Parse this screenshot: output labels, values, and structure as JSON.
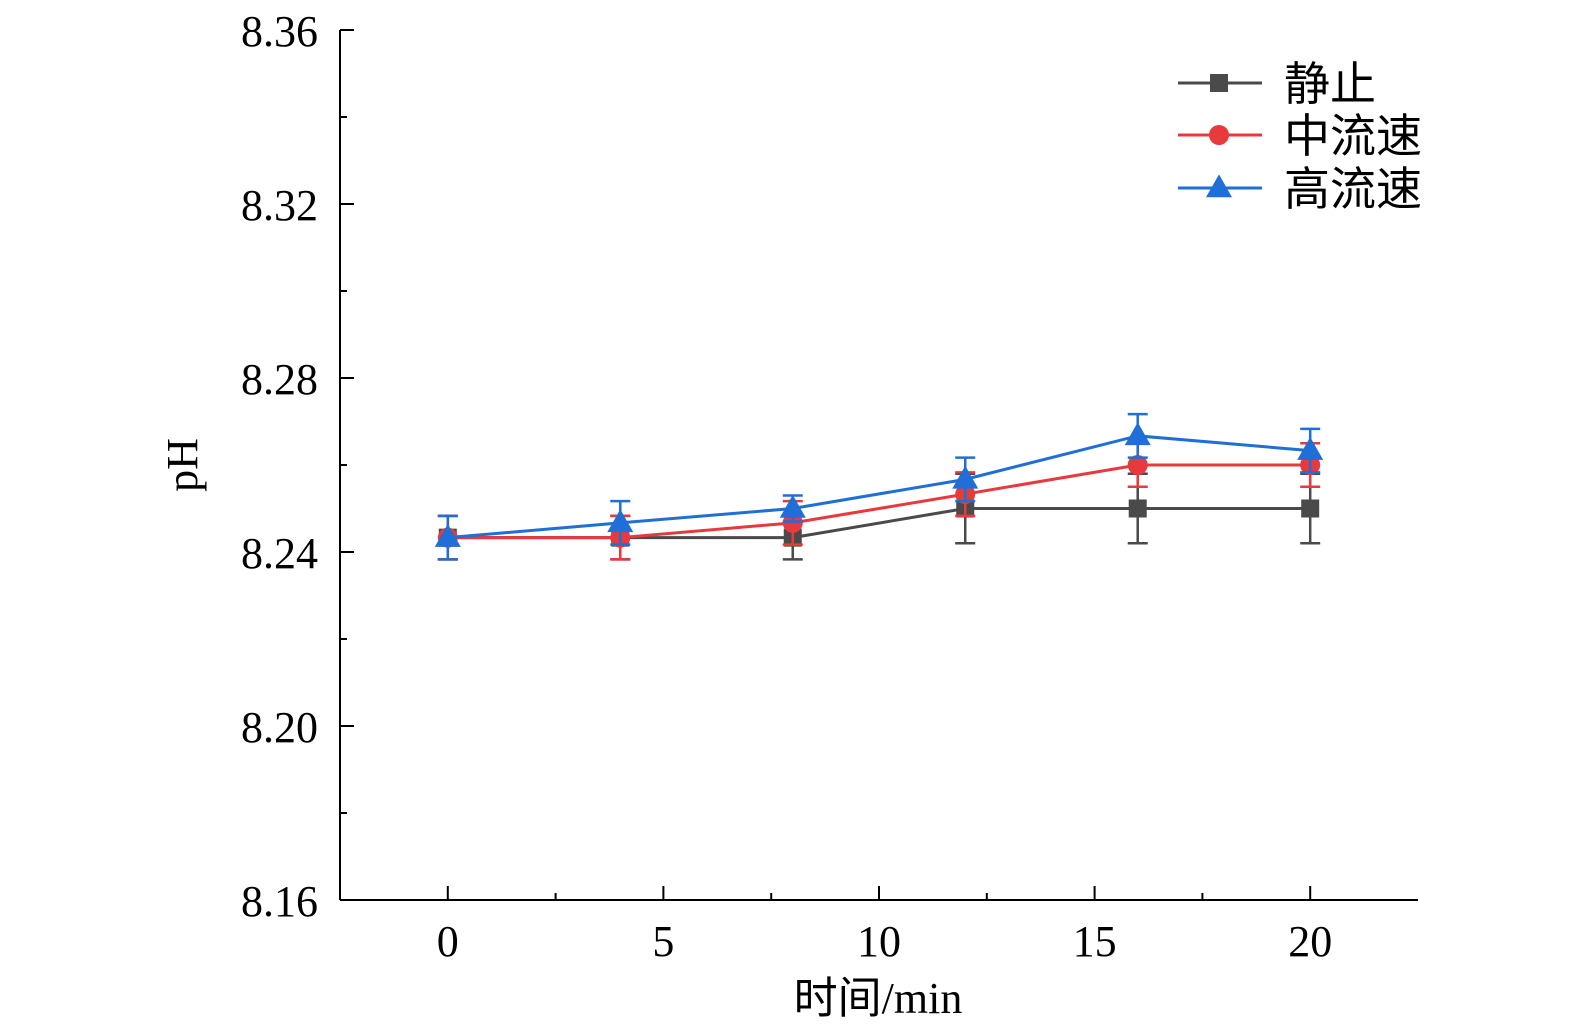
{
  "chart_data": {
    "type": "line",
    "xlabel": "时间/min",
    "ylabel": "pH",
    "xlim": [
      -2.5,
      22.5
    ],
    "ylim": [
      8.16,
      8.36
    ],
    "x_ticks": [
      0,
      5,
      10,
      15,
      20
    ],
    "y_ticks": [
      8.16,
      8.2,
      8.24,
      8.28,
      8.32,
      8.36
    ],
    "x_tick_labels": [
      "0",
      "5",
      "10",
      "15",
      "20"
    ],
    "y_tick_labels": [
      "8.16",
      "8.20",
      "8.24",
      "8.28",
      "8.32",
      "8.36"
    ],
    "x_minor_ticks": [
      2.5,
      7.5,
      12.5,
      17.5
    ],
    "y_minor_ticks": [
      8.18,
      8.22,
      8.26,
      8.3,
      8.34
    ],
    "grid": false,
    "legend_position": "top-right",
    "x": [
      0,
      4,
      8,
      12,
      16,
      20
    ],
    "series": [
      {
        "name": "静止",
        "color": "#4a4a4a",
        "marker": "square",
        "values": [
          8.2433,
          8.2433,
          8.2433,
          8.25,
          8.25,
          8.25
        ],
        "errors": [
          0.005,
          0.005,
          0.005,
          0.008,
          0.008,
          0.008
        ]
      },
      {
        "name": "中流速",
        "color": "#e8393c",
        "marker": "circle",
        "values": [
          8.2433,
          8.2433,
          8.2467,
          8.2533,
          8.26,
          8.26
        ],
        "errors": [
          0.005,
          0.005,
          0.005,
          0.005,
          0.005,
          0.005
        ]
      },
      {
        "name": "高流速",
        "color": "#1f6fd6",
        "marker": "triangle",
        "values": [
          8.2433,
          8.2467,
          8.25,
          8.2567,
          8.2667,
          8.2633
        ],
        "errors": [
          0.005,
          0.005,
          0.003,
          0.005,
          0.005,
          0.005
        ]
      }
    ]
  }
}
